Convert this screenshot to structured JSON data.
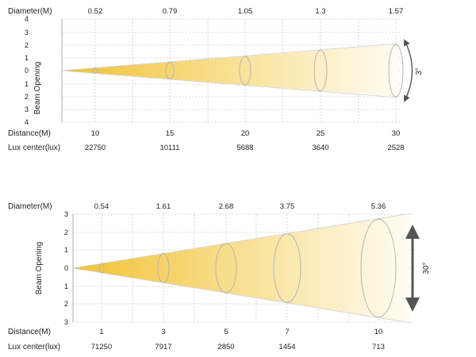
{
  "beam_diagrams": [
    {
      "diameter_label": "Diameter(M)",
      "beam_opening_label": "Beam Opening",
      "distance_label": "Distance(M)",
      "lux_label": "Lux center(lux)",
      "angle_label": "3°",
      "y_ticks_top": [
        "4",
        "3",
        "2",
        "1"
      ],
      "y_tick_center": "0",
      "y_ticks_bottom": [
        "1",
        "2",
        "3",
        "4"
      ],
      "points": [
        {
          "distance": "10",
          "diameter": "0.52",
          "lux": "22750"
        },
        {
          "distance": "15",
          "diameter": "0.79",
          "lux": "10111"
        },
        {
          "distance": "20",
          "diameter": "1.05",
          "lux": "5688"
        },
        {
          "distance": "25",
          "diameter": "1.3",
          "lux": "3640"
        },
        {
          "distance": "30",
          "diameter": "1.57",
          "lux": "2528"
        }
      ]
    },
    {
      "diameter_label": "Diameter(M)",
      "beam_opening_label": "Beam Opening",
      "distance_label": "Distance(M)",
      "lux_label": "Lux center(lux)",
      "angle_label": "30°",
      "y_ticks_top": [
        "3",
        "2",
        "1"
      ],
      "y_tick_center": "0",
      "y_ticks_bottom": [
        "1",
        "2",
        "3"
      ],
      "points": [
        {
          "distance": "1",
          "diameter": "0.54",
          "lux": "71250"
        },
        {
          "distance": "3",
          "diameter": "1.61",
          "lux": "7917"
        },
        {
          "distance": "5",
          "diameter": "2.68",
          "lux": "2850"
        },
        {
          "distance": "7",
          "diameter": "3.75",
          "lux": "1454"
        },
        {
          "distance": "10",
          "diameter": "5.36",
          "lux": "713"
        }
      ]
    }
  ],
  "colors": {
    "beam_start": "#f2c233",
    "beam_end": "#fffdf2",
    "grid": "#bdbdbd",
    "ellipse": "#b5b5b5",
    "arrow": "#555555"
  }
}
